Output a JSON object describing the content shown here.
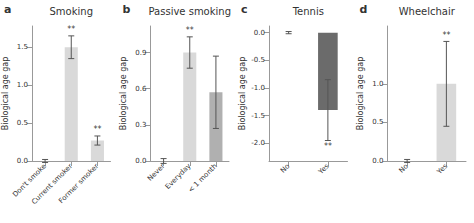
{
  "chart_data": [
    {
      "type": "bar",
      "title": "Smoking",
      "panel_label": "a",
      "categories": [
        "Don't smoke",
        "Current smoker",
        "Former smoker"
      ],
      "values": [
        0.0,
        1.5,
        0.27
      ],
      "errors": [
        0.02,
        0.15,
        0.06
      ],
      "significance": [
        null,
        "**",
        "**"
      ],
      "colors": [
        "#d9d9d9",
        "#d9d9d9",
        "#d9d9d9"
      ],
      "ylabel": "Biological age gap",
      "ylim": [
        0,
        1.78
      ],
      "yticks": [
        {
          "value": 0.0,
          "label": "0.0"
        },
        0.5,
        {
          "value": 1.0,
          "label": "1.0"
        },
        1.5
      ],
      "grid": false
    },
    {
      "type": "bar",
      "title": "Passive smoking",
      "panel_label": "b",
      "categories": [
        "Never",
        "Everyday",
        "< 1 month"
      ],
      "values": [
        0.0,
        0.9,
        0.57
      ],
      "errors": [
        0.02,
        0.13,
        0.3
      ],
      "significance": [
        null,
        "**",
        null
      ],
      "colors": [
        "#d9d9d9",
        "#d9d9d9",
        "#b0b0b0"
      ],
      "ylabel": "Biological age gap",
      "ylim": [
        0,
        1.12
      ],
      "yticks": [
        {
          "value": 0.0,
          "label": "0.0"
        },
        0.3,
        0.6,
        0.9
      ],
      "grid": false
    },
    {
      "type": "bar",
      "title": "Tennis",
      "panel_label": "c",
      "categories": [
        "No",
        "Yes"
      ],
      "values": [
        0.0,
        -1.4
      ],
      "errors": [
        0.02,
        0.55
      ],
      "significance": [
        null,
        "**"
      ],
      "colors": [
        "#d9d9d9",
        "#6b6b6b"
      ],
      "ylabel": "Biological age gap",
      "ylim": [
        -2.32,
        0.12
      ],
      "yticks": [
        {
          "value": 0.0,
          "label": "0.0"
        },
        -0.5,
        {
          "value": -1.0,
          "label": "-1.0"
        },
        -1.5,
        {
          "value": -2.0,
          "label": "-2.0"
        }
      ],
      "grid": false
    },
    {
      "type": "bar",
      "title": "Wheelchair",
      "panel_label": "d",
      "categories": [
        "No",
        "Yes"
      ],
      "values": [
        0.0,
        1.0
      ],
      "errors": [
        0.02,
        0.55
      ],
      "significance": [
        null,
        "**"
      ],
      "colors": [
        "#d9d9d9",
        "#d9d9d9"
      ],
      "ylabel": "Biological age gap",
      "ylim": [
        0,
        1.75
      ],
      "yticks": [
        {
          "value": 0.0,
          "label": "0.0"
        },
        0.5,
        {
          "value": 1.0,
          "label": "1.0"
        }
      ],
      "grid": false
    }
  ]
}
